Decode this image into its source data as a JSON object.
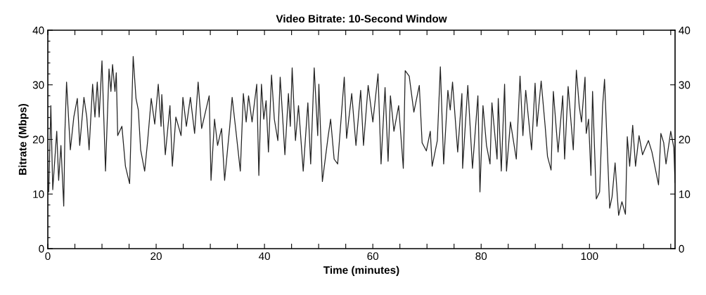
{
  "chart_data": {
    "type": "line",
    "title": "Video Bitrate: 10-Second Window",
    "xlabel": "Time (minutes)",
    "ylabel": "Bitrate (Mbps)",
    "xlim": [
      0,
      115.8
    ],
    "ylim": [
      0,
      40
    ],
    "xticks": [
      0,
      {
        "value": 5,
        "label": null
      },
      {
        "value": 10,
        "label": null
      },
      {
        "value": 15,
        "label": null
      },
      20,
      {
        "value": 25,
        "label": null
      },
      {
        "value": 30,
        "label": null
      },
      {
        "value": 35,
        "label": null
      },
      40,
      {
        "value": 45,
        "label": null
      },
      {
        "value": 50,
        "label": null
      },
      {
        "value": 55,
        "label": null
      },
      60,
      {
        "value": 65,
        "label": null
      },
      {
        "value": 70,
        "label": null
      },
      {
        "value": 75,
        "label": null
      },
      80,
      {
        "value": 85,
        "label": null
      },
      {
        "value": 90,
        "label": null
      },
      {
        "value": 95,
        "label": null
      },
      100,
      {
        "value": 105,
        "label": null
      },
      {
        "value": 110,
        "label": null
      },
      {
        "value": 115,
        "label": null
      }
    ],
    "yticks": [
      0,
      {
        "value": 2,
        "label": null
      },
      {
        "value": 4,
        "label": null
      },
      {
        "value": 6,
        "label": null
      },
      {
        "value": 8,
        "label": null
      },
      10,
      {
        "value": 12,
        "label": null
      },
      {
        "value": 14,
        "label": null
      },
      {
        "value": 16,
        "label": null
      },
      {
        "value": 18,
        "label": null
      },
      20,
      {
        "value": 22,
        "label": null
      },
      {
        "value": 24,
        "label": null
      },
      {
        "value": 26,
        "label": null
      },
      {
        "value": 28,
        "label": null
      },
      30,
      {
        "value": 32,
        "label": null
      },
      {
        "value": 34,
        "label": null
      },
      {
        "value": 36,
        "label": null
      },
      {
        "value": 38,
        "label": null
      },
      40
    ],
    "y2lim": [
      0,
      40
    ],
    "y2ticks": [
      0,
      10,
      20,
      30,
      40
    ],
    "grid": false,
    "marker": "none",
    "line_style": "solid",
    "series": [
      {
        "color": "#222222",
        "x": [
          0.17,
          0.56,
          0.91,
          1.65,
          2.0,
          2.42,
          2.94,
          3.16,
          3.46,
          4.16,
          4.8,
          5.45,
          5.89,
          6.67,
          7.19,
          7.62,
          8.27,
          8.7,
          9.13,
          9.48,
          10.0,
          10.65,
          11.3,
          11.65,
          11.95,
          12.4,
          12.64,
          12.9,
          13.68,
          14.33,
          15.1,
          15.76,
          16.28,
          16.71,
          17.14,
          17.88,
          18.44,
          19.09,
          19.74,
          20.39,
          20.91,
          21.04,
          21.69,
          22.55,
          22.99,
          23.64,
          24.6,
          24.94,
          25.58,
          26.32,
          27.1,
          27.75,
          28.4,
          29.79,
          30.13,
          30.78,
          31.34,
          32.08,
          32.64,
          33.59,
          34.03,
          34.68,
          35.54,
          36.1,
          36.62,
          37.06,
          37.71,
          38.57,
          38.96,
          39.44,
          39.87,
          40.3,
          40.73,
          41.3,
          41.82,
          42.47,
          42.9,
          43.77,
          44.42,
          44.77,
          45.11,
          45.72,
          46.28,
          47.15,
          48.01,
          48.53,
          49.18,
          49.83,
          50.04,
          50.69,
          51.77,
          52.21,
          52.86,
          53.51,
          54.73,
          55.16,
          56.11,
          56.89,
          57.76,
          58.28,
          59.14,
          60.01,
          60.96,
          61.52,
          62.26,
          62.82,
          63.25,
          63.9,
          64.77,
          65.63,
          65.98,
          66.72,
          67.58,
          68.58,
          69.1,
          69.88,
          70.61,
          70.96,
          71.91,
          72.47,
          73.08,
          73.86,
          74.29,
          74.72,
          75.67,
          76.45,
          76.58,
          77.54,
          78.4,
          79.4,
          79.78,
          80.34,
          80.99,
          81.64,
          81.99,
          82.94,
          83.16,
          83.72,
          84.33,
          84.68,
          85.41,
          86.49,
          87.18,
          87.71,
          88.23,
          89.31,
          89.96,
          90.3,
          91.08,
          91.82,
          92.25,
          92.91,
          93.33,
          94.2,
          95.06,
          95.41,
          96.06,
          97.01,
          97.58,
          98.1,
          98.53,
          99.18,
          99.4,
          99.83,
          100.27,
          100.57,
          101.26,
          101.87,
          102.43,
          102.78,
          103.73,
          104.17,
          104.73,
          105.38,
          105.99,
          106.64,
          106.98,
          107.42,
          107.98,
          108.5,
          109.15,
          109.8,
          110.88,
          111.53,
          112.75,
          113.18,
          113.7,
          114.13,
          115.0,
          115.57,
          115.8
        ],
        "values": [
          10.4,
          26.2,
          10.8,
          21.5,
          12.5,
          18.9,
          7.8,
          21.5,
          30.5,
          18.1,
          24.1,
          27.5,
          18.9,
          27.7,
          24.1,
          18.1,
          30.1,
          24.1,
          30.5,
          24.1,
          34.4,
          14.2,
          32.9,
          28.8,
          33.7,
          28.8,
          32.2,
          20.7,
          22.4,
          15.1,
          11.9,
          35.2,
          27.5,
          25.4,
          18.1,
          14.2,
          19.8,
          27.5,
          22.8,
          30.1,
          22.4,
          28.2,
          17.2,
          26.2,
          15.1,
          24.1,
          20.7,
          27.7,
          22.4,
          27.7,
          21.1,
          30.5,
          22.0,
          28.0,
          12.5,
          23.7,
          18.9,
          22.0,
          12.5,
          22.4,
          27.7,
          22.0,
          14.2,
          28.4,
          23.2,
          28.0,
          23.2,
          30.1,
          13.4,
          30.1,
          23.7,
          27.1,
          17.7,
          31.8,
          23.7,
          19.8,
          31.4,
          17.2,
          28.4,
          22.4,
          33.1,
          19.8,
          26.2,
          14.2,
          26.7,
          15.5,
          33.1,
          20.7,
          30.1,
          12.3,
          20.7,
          23.7,
          16.4,
          15.5,
          31.4,
          20.2,
          28.4,
          18.9,
          29.0,
          18.9,
          29.9,
          23.2,
          32.0,
          15.5,
          29.5,
          16.0,
          28.0,
          21.5,
          26.2,
          14.7,
          32.6,
          31.6,
          25.0,
          29.9,
          19.4,
          17.9,
          21.5,
          15.1,
          19.8,
          33.3,
          15.5,
          29.0,
          25.4,
          30.5,
          17.7,
          28.4,
          14.7,
          29.9,
          14.7,
          28.0,
          10.4,
          26.2,
          18.9,
          15.5,
          26.7,
          16.4,
          27.5,
          14.2,
          30.1,
          14.2,
          23.2,
          16.4,
          31.6,
          20.7,
          29.0,
          18.1,
          30.3,
          22.4,
          30.7,
          22.4,
          16.9,
          14.4,
          28.8,
          17.7,
          28.0,
          16.4,
          29.7,
          18.1,
          32.7,
          26.2,
          23.2,
          31.4,
          21.1,
          23.7,
          13.4,
          28.8,
          9.1,
          10.4,
          26.2,
          31.0,
          7.4,
          9.5,
          15.7,
          6.1,
          8.6,
          6.3,
          20.5,
          15.1,
          22.6,
          15.1,
          20.7,
          17.2,
          19.8,
          17.7,
          11.7,
          21.1,
          19.4,
          15.5,
          21.5,
          18.5,
          12.1
        ]
      }
    ]
  }
}
